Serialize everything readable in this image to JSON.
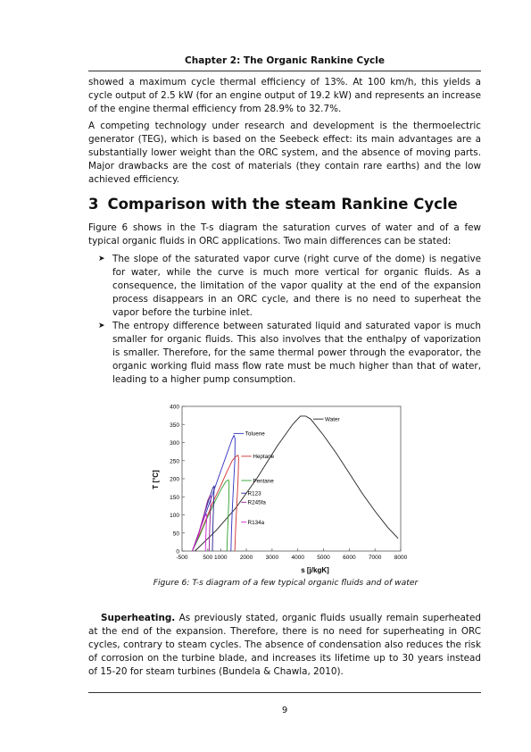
{
  "header": {
    "title": "Chapter 2: The Organic Rankine Cycle"
  },
  "paragraphs": {
    "p1": "showed a maximum cycle thermal efficiency of 13%. At 100 km/h, this yields a cycle output of 2.5 kW (for an engine output of 19.2 kW) and represents an increase of the engine thermal efficiency from 28.9% to 32.7%.",
    "p2": "A competing technology under research and development is the thermoelectric generator (TEG), which is based on the Seebeck effect: its main advantages are a substantially lower weight than the ORC system, and the absence of moving parts. Major drawbacks are the cost of materials (they contain rare earths) and the low achieved efficiency.",
    "p3": "Figure 6 shows in the T-s diagram the saturation curves of water and of a few typical organic fluids in ORC applications. Two main differences can be stated:"
  },
  "section": {
    "number": "3",
    "title": "Comparison with the steam Rankine Cycle"
  },
  "bullets": [
    "The slope of the saturated vapor curve (right curve of the dome) is negative for water, while the curve is much more vertical for organic fluids. As a consequence, the limitation of the vapor quality at the end of the expansion process disappears in an ORC cycle, and there is no need to superheat the vapor before the turbine inlet.",
    "The entropy difference between saturated liquid and saturated vapor is much smaller for organic fluids.  This also involves that the enthalpy of vaporization is smaller. Therefore, for the same thermal power through the evaporator, the organic working fluid mass flow rate must be much higher than that of water, leading to a higher pump consumption."
  ],
  "bullet_icon": "arrowhead-bullet-icon",
  "figure": {
    "caption": "Figure 6: T-s diagram of a few typical organic fluids and of water"
  },
  "superheating": {
    "lead": "Superheating.",
    "text": " As previously stated, organic fluids usually remain superheated at the end of the expansion. Therefore, there is no need for superheating in ORC cycles, contrary to steam cycles. The absence of condensation also reduces the risk of corrosion on the turbine blade, and increases its lifetime up to 30 years instead of 15-20 for steam turbines (Bundela & Chawla, 2010)."
  },
  "page_number": "9",
  "chart_data": {
    "type": "line",
    "xlabel": "s [j/kgK]",
    "ylabel": "T [°C]",
    "xlim": [
      -500,
      8000
    ],
    "ylim": [
      0,
      400
    ],
    "xticks": [
      -500,
      500,
      1000,
      2000,
      3000,
      4000,
      5000,
      6000,
      7000,
      8000
    ],
    "xtick_labels": [
      "-500",
      "500",
      "1000",
      "2000",
      "3000",
      "4000",
      "5000",
      "6000",
      "7000",
      "8000"
    ],
    "yticks": [
      0,
      50,
      100,
      150,
      200,
      250,
      300,
      350,
      400
    ],
    "legend": "inline labels",
    "grid": false,
    "series": [
      {
        "name": "Water",
        "color": "#222222",
        "x": [
          0,
          800,
          1600,
          2400,
          3200,
          3800,
          4100,
          4300,
          4500,
          5000,
          5500,
          6000,
          6500,
          7000,
          7500,
          7900
        ],
        "y": [
          0,
          55,
          120,
          200,
          290,
          350,
          373,
          373,
          365,
          320,
          270,
          215,
          160,
          110,
          65,
          35
        ],
        "label_pos": [
          4600,
          365
        ],
        "label_end": [
          5000,
          365
        ]
      },
      {
        "name": "Toluene",
        "color": "#3030c0",
        "x": [
          -100,
          300,
          700,
          1000,
          1200,
          1350,
          1450,
          1520,
          1560,
          1550,
          1500,
          1450,
          1420,
          1400
        ],
        "y": [
          0,
          80,
          160,
          220,
          260,
          290,
          310,
          320,
          310,
          250,
          180,
          110,
          50,
          0
        ],
        "label_pos": [
          1500,
          325
        ],
        "label_end": [
          1900,
          325
        ]
      },
      {
        "name": "Heptane",
        "color": "#d03030",
        "x": [
          -100,
          300,
          700,
          1000,
          1250,
          1450,
          1600,
          1680,
          1700,
          1680,
          1630,
          1580,
          1550
        ],
        "y": [
          0,
          65,
          135,
          180,
          220,
          250,
          262,
          265,
          255,
          200,
          130,
          60,
          0
        ],
        "label_pos": [
          1800,
          262
        ],
        "label_end": [
          2200,
          262
        ]
      },
      {
        "name": "Pentane",
        "color": "#30a030",
        "x": [
          -100,
          200,
          500,
          800,
          1050,
          1200,
          1300,
          1330,
          1320,
          1290,
          1260,
          1240
        ],
        "y": [
          0,
          45,
          95,
          140,
          175,
          192,
          197,
          190,
          150,
          90,
          35,
          0
        ],
        "label_pos": [
          1800,
          195
        ],
        "label_end": [
          2200,
          195
        ]
      },
      {
        "name": "R123",
        "color": "#202090",
        "x": [
          -100,
          200,
          400,
          600,
          700,
          750,
          730,
          700,
          680
        ],
        "y": [
          0,
          60,
          110,
          155,
          175,
          180,
          140,
          70,
          0
        ],
        "label_pos": [
          1800,
          160
        ],
        "label_end": [
          2000,
          160
        ]
      },
      {
        "name": "R245fa",
        "color": "#902090",
        "x": [
          -100,
          150,
          350,
          500,
          600,
          620,
          600,
          570,
          550
        ],
        "y": [
          0,
          50,
          100,
          140,
          155,
          150,
          110,
          50,
          0
        ],
        "label_pos": [
          1800,
          135
        ],
        "label_end": [
          2000,
          135
        ]
      },
      {
        "name": "R134a",
        "color": "#d020d0",
        "x": [
          -100,
          100,
          250,
          380,
          450,
          460,
          440,
          420,
          410
        ],
        "y": [
          0,
          35,
          70,
          95,
          102,
          98,
          70,
          30,
          0
        ],
        "label_pos": [
          1800,
          80
        ],
        "label_end": [
          2000,
          80
        ]
      }
    ]
  }
}
